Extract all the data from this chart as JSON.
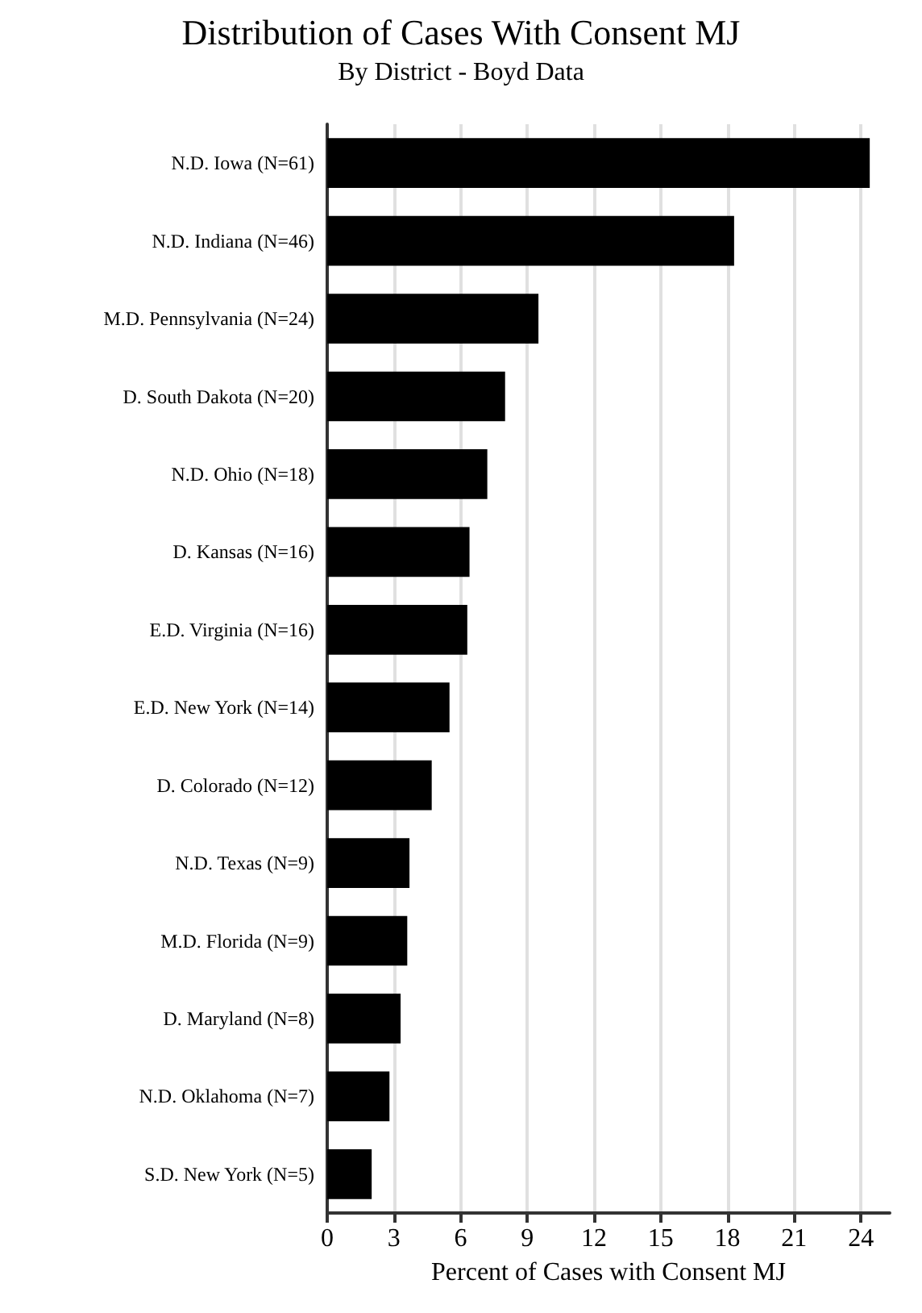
{
  "chart_data": {
    "type": "bar",
    "orientation": "horizontal",
    "title": "Distribution of Cases With Consent MJ",
    "subtitle": "By District - Boyd Data",
    "xlabel": "Percent of Cases with Consent MJ",
    "categories": [
      "N.D. Iowa (N=61)",
      "N.D. Indiana (N=46)",
      "M.D. Pennsylvania (N=24)",
      "D. South Dakota (N=20)",
      "N.D. Ohio (N=18)",
      "D. Kansas (N=16)",
      "E.D. Virginia (N=16)",
      "E.D. New York (N=14)",
      "D. Colorado (N=12)",
      "N.D. Texas (N=9)",
      "M.D. Florida (N=9)",
      "D. Maryland (N=8)",
      "N.D. Oklahoma (N=7)",
      "S.D. New York (N=5)"
    ],
    "values": [
      24.4,
      18.3,
      9.5,
      8.0,
      7.2,
      6.4,
      6.3,
      5.5,
      4.7,
      3.7,
      3.6,
      3.3,
      2.8,
      2.0
    ],
    "color": "#000000",
    "xlim": [
      0,
      25.3
    ],
    "xticks": [
      0,
      3,
      6,
      9,
      12,
      15,
      18,
      21,
      24
    ],
    "grid": "x"
  }
}
